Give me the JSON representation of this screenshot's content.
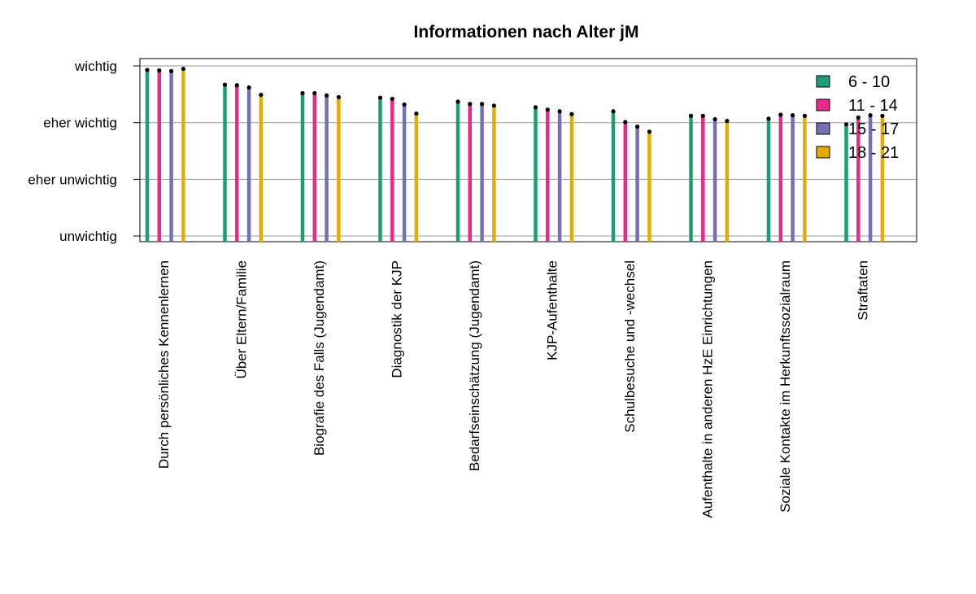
{
  "chart_data": {
    "type": "bar",
    "title": "Informationen nach Alter jM",
    "xlabel": "",
    "ylabel": "",
    "y_tick_labels": [
      "unwichtig",
      "eher unwichtig",
      "eher wichtig",
      "wichtig"
    ],
    "y_tick_values": [
      1,
      2,
      3,
      4
    ],
    "ylim": [
      0.9,
      4.13
    ],
    "grid": "horizontal",
    "legend_position": "top-right",
    "categories": [
      "Durch persönliches Kennenlernen",
      "Über Eltern/Familie",
      "Biografie des Falls (Jugendamt)",
      "Diagnostik der KJP",
      "Bedarfseinschätzung (Jugendamt)",
      "KJP-Aufenthalte",
      "Schulbesuche und -wechsel",
      "Aufenthalte in anderen HzE Einrichtungen",
      "Soziale Kontakte im Herkunftssozialraum",
      "Straftaten"
    ],
    "series": [
      {
        "name": "6 - 10",
        "color": "#1b9e77",
        "values": [
          3.93,
          3.67,
          3.52,
          3.44,
          3.37,
          3.27,
          3.2,
          3.12,
          3.07,
          2.97
        ]
      },
      {
        "name": "11 - 14",
        "color": "#e7298a",
        "values": [
          3.92,
          3.66,
          3.52,
          3.42,
          3.33,
          3.23,
          3.01,
          3.12,
          3.14,
          3.09
        ]
      },
      {
        "name": "15 - 17",
        "color": "#7570b3",
        "values": [
          3.91,
          3.62,
          3.48,
          3.32,
          3.33,
          3.2,
          2.93,
          3.06,
          3.13,
          3.13
        ]
      },
      {
        "name": "18 - 21",
        "color": "#e6ab02",
        "values": [
          3.95,
          3.49,
          3.45,
          3.16,
          3.3,
          3.15,
          2.84,
          3.03,
          3.12,
          3.12
        ]
      }
    ]
  }
}
